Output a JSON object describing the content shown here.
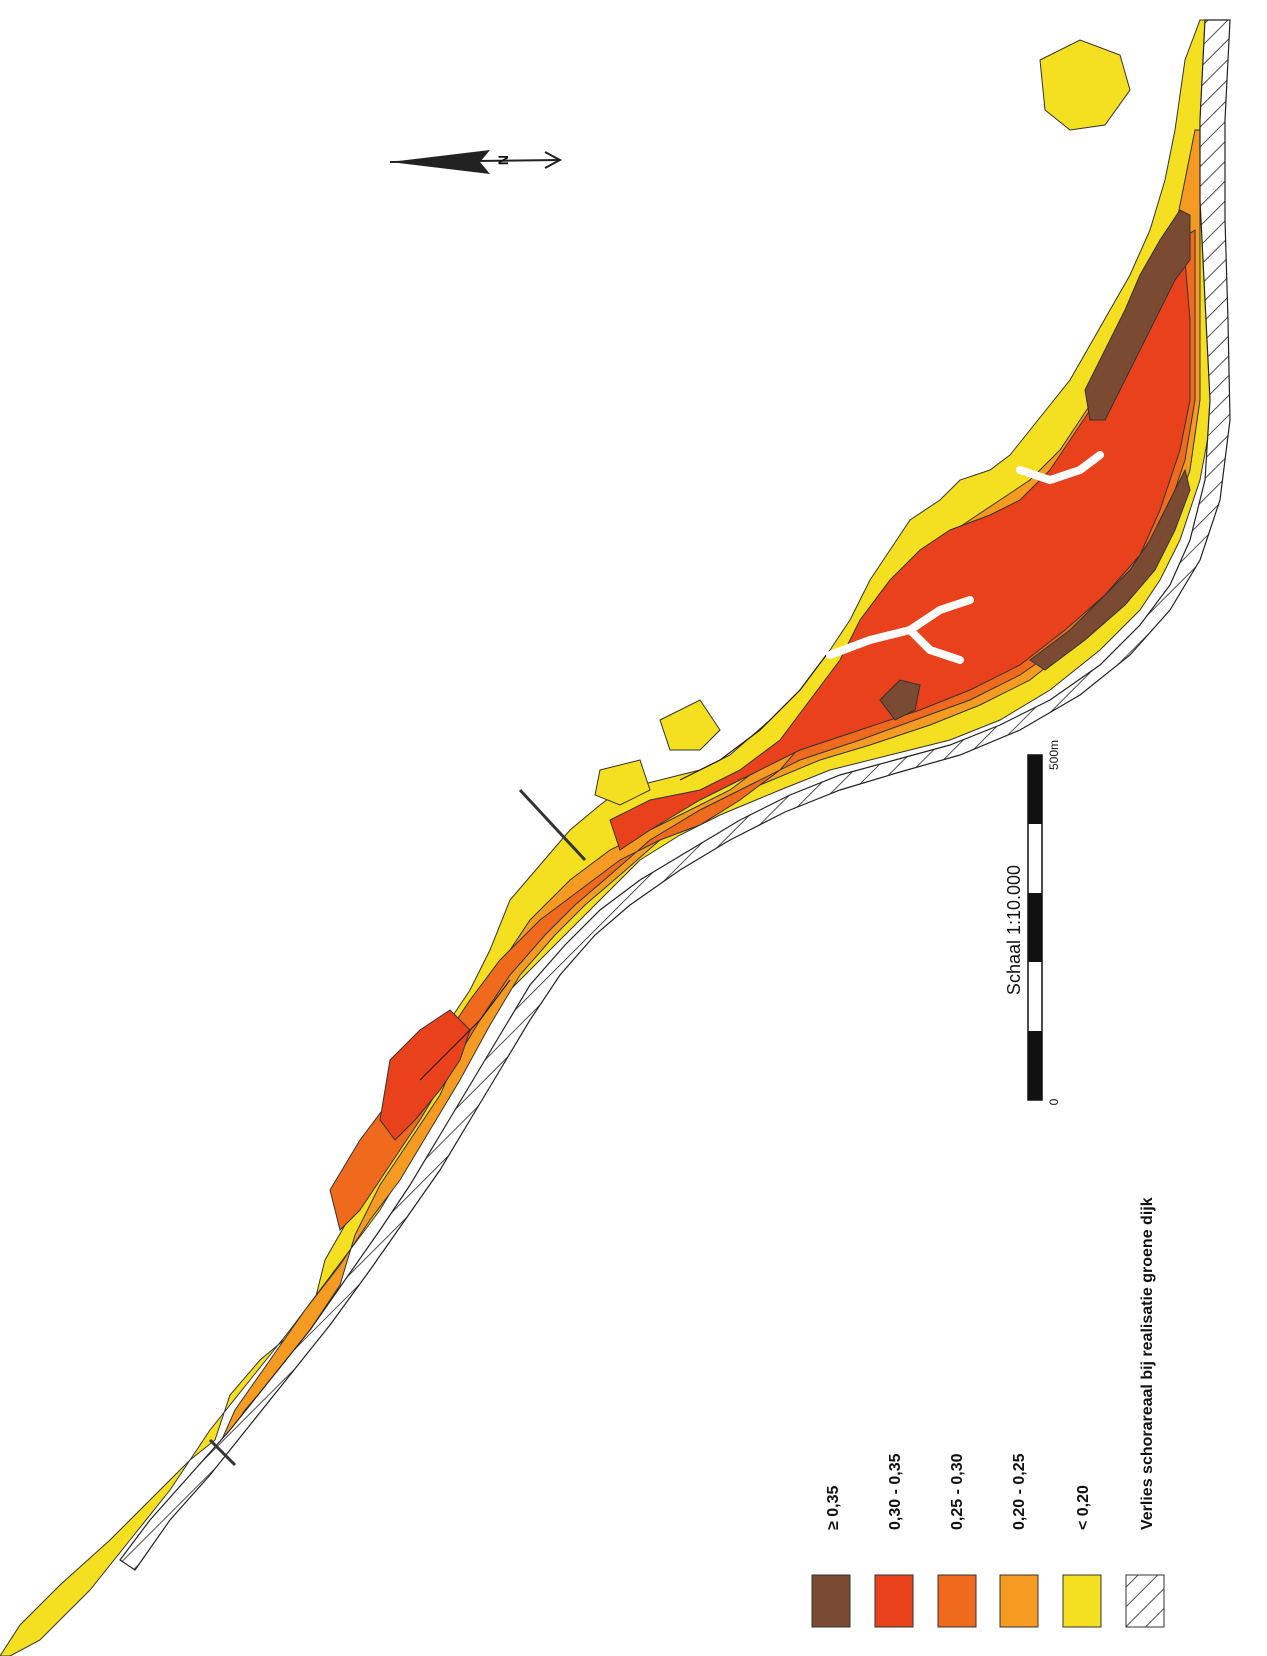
{
  "map": {
    "north_label": "N",
    "scale": {
      "title": "Schaal 1:10.000",
      "start_label": "0",
      "end_label": "500m"
    },
    "legend": [
      {
        "label": "≥ 0,35",
        "color": "#7a4a32"
      },
      {
        "label": "0,30 - 0,35",
        "color": "#e8411c"
      },
      {
        "label": "0,25 - 0,30",
        "color": "#f06a1e"
      },
      {
        "label": "0,20 - 0,25",
        "color": "#f59b22"
      },
      {
        "label": "< 0,20",
        "color": "#f4e021"
      },
      {
        "label": "Verlies schorareaal bij realisatie groene dijk",
        "color": "#ffffff",
        "pattern": "hatch"
      }
    ]
  }
}
